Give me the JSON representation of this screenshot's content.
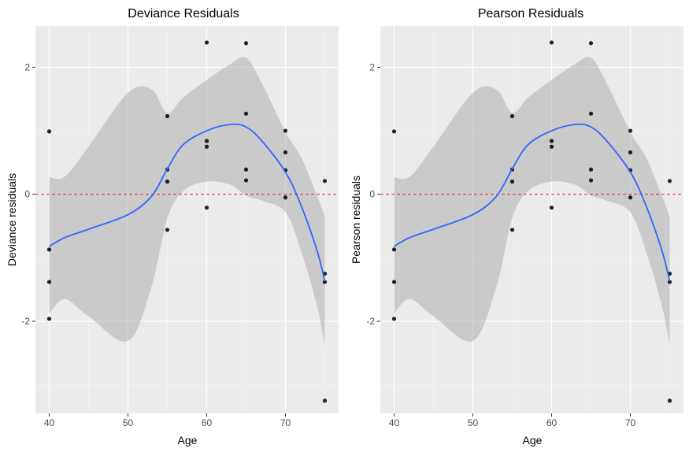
{
  "colors": {
    "panel_bg": "#ebebeb",
    "grid_major": "#ffffff",
    "grid_minor": "#f5f5f5",
    "point": "#000000",
    "smooth_line": "#3366ff",
    "ribbon": "#999999",
    "zero_line": "#e41a1c",
    "tick": "#333333"
  },
  "chart_data": [
    {
      "type": "scatter",
      "title": "Deviance Residuals",
      "xlabel": "Age",
      "ylabel": "Deviance residuals",
      "xlim": [
        38.25,
        76.75
      ],
      "ylim": [
        -3.45,
        2.65
      ],
      "x_ticks": [
        40,
        50,
        60,
        70
      ],
      "y_ticks": [
        -2,
        0,
        2
      ],
      "x_tick_labels": [
        "40",
        "50",
        "60",
        "70"
      ],
      "y_tick_labels": [
        "-2",
        "0",
        "2"
      ],
      "grid": true,
      "reference_line": {
        "y": 0,
        "style": "dashed"
      },
      "points": [
        {
          "x": 40,
          "y": 0.99
        },
        {
          "x": 40,
          "y": -0.87
        },
        {
          "x": 40,
          "y": -1.38
        },
        {
          "x": 40,
          "y": -1.96
        },
        {
          "x": 55,
          "y": 1.23
        },
        {
          "x": 55,
          "y": 0.39
        },
        {
          "x": 55,
          "y": 0.2
        },
        {
          "x": 55,
          "y": -0.56
        },
        {
          "x": 60,
          "y": 2.39
        },
        {
          "x": 60,
          "y": 0.84
        },
        {
          "x": 60,
          "y": 0.75
        },
        {
          "x": 60,
          "y": -0.21
        },
        {
          "x": 65,
          "y": 2.38
        },
        {
          "x": 65,
          "y": 1.27
        },
        {
          "x": 65,
          "y": 0.39
        },
        {
          "x": 65,
          "y": 0.22
        },
        {
          "x": 70,
          "y": 1.0
        },
        {
          "x": 70,
          "y": 0.66
        },
        {
          "x": 70,
          "y": 0.38
        },
        {
          "x": 70,
          "y": -0.05
        },
        {
          "x": 75,
          "y": 0.21
        },
        {
          "x": 75,
          "y": -1.25
        },
        {
          "x": 75,
          "y": -1.38
        },
        {
          "x": 75,
          "y": -3.25
        }
      ],
      "smooth": {
        "x": [
          40,
          42,
          45,
          50,
          53,
          55,
          57,
          60,
          63,
          65,
          67,
          70,
          72,
          74,
          75
        ],
        "y": [
          -0.82,
          -0.68,
          -0.55,
          -0.32,
          -0.03,
          0.4,
          0.78,
          1.0,
          1.1,
          1.06,
          0.84,
          0.35,
          -0.18,
          -0.88,
          -1.37
        ],
        "upper": [
          0.27,
          0.28,
          0.75,
          1.6,
          1.65,
          1.28,
          1.52,
          1.8,
          2.05,
          2.15,
          1.75,
          0.98,
          0.58,
          -0.02,
          -0.35
        ],
        "lower": [
          -1.88,
          -1.65,
          -1.92,
          -2.31,
          -1.45,
          -0.38,
          0.05,
          0.2,
          0.15,
          -0.02,
          -0.1,
          -0.28,
          -0.9,
          -1.75,
          -2.38
        ]
      }
    },
    {
      "type": "scatter",
      "title": "Pearson Residuals",
      "xlabel": "Age",
      "ylabel": "Pearson residuals",
      "xlim": [
        38.25,
        76.75
      ],
      "ylim": [
        -3.45,
        2.65
      ],
      "x_ticks": [
        40,
        50,
        60,
        70
      ],
      "y_ticks": [
        -2,
        0,
        2
      ],
      "x_tick_labels": [
        "40",
        "50",
        "60",
        "70"
      ],
      "y_tick_labels": [
        "-2",
        "0",
        "2"
      ],
      "grid": true,
      "reference_line": {
        "y": 0,
        "style": "dashed"
      },
      "points": [
        {
          "x": 40,
          "y": 0.99
        },
        {
          "x": 40,
          "y": -0.87
        },
        {
          "x": 40,
          "y": -1.38
        },
        {
          "x": 40,
          "y": -1.96
        },
        {
          "x": 55,
          "y": 1.23
        },
        {
          "x": 55,
          "y": 0.39
        },
        {
          "x": 55,
          "y": 0.2
        },
        {
          "x": 55,
          "y": -0.56
        },
        {
          "x": 60,
          "y": 2.39
        },
        {
          "x": 60,
          "y": 0.84
        },
        {
          "x": 60,
          "y": 0.75
        },
        {
          "x": 60,
          "y": -0.21
        },
        {
          "x": 65,
          "y": 2.38
        },
        {
          "x": 65,
          "y": 1.27
        },
        {
          "x": 65,
          "y": 0.39
        },
        {
          "x": 65,
          "y": 0.22
        },
        {
          "x": 70,
          "y": 1.0
        },
        {
          "x": 70,
          "y": 0.66
        },
        {
          "x": 70,
          "y": 0.38
        },
        {
          "x": 70,
          "y": -0.05
        },
        {
          "x": 75,
          "y": 0.21
        },
        {
          "x": 75,
          "y": -1.25
        },
        {
          "x": 75,
          "y": -1.38
        },
        {
          "x": 75,
          "y": -3.25
        }
      ],
      "smooth": {
        "x": [
          40,
          42,
          45,
          50,
          53,
          55,
          57,
          60,
          63,
          65,
          67,
          70,
          72,
          74,
          75
        ],
        "y": [
          -0.82,
          -0.68,
          -0.55,
          -0.32,
          -0.03,
          0.4,
          0.78,
          1.0,
          1.1,
          1.06,
          0.84,
          0.35,
          -0.18,
          -0.88,
          -1.37
        ],
        "upper": [
          0.27,
          0.28,
          0.75,
          1.6,
          1.65,
          1.28,
          1.52,
          1.8,
          2.05,
          2.15,
          1.75,
          0.98,
          0.58,
          -0.02,
          -0.35
        ],
        "lower": [
          -1.88,
          -1.65,
          -1.92,
          -2.31,
          -1.45,
          -0.38,
          0.05,
          0.2,
          0.15,
          -0.02,
          -0.1,
          -0.28,
          -0.9,
          -1.75,
          -2.38
        ]
      }
    }
  ]
}
